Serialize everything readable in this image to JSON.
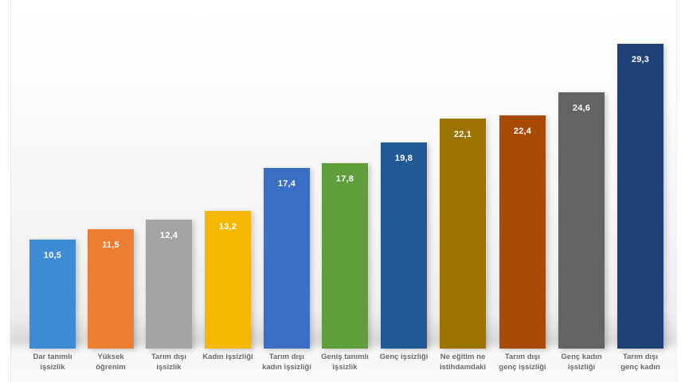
{
  "chart_data": {
    "type": "bar",
    "title": "",
    "xlabel": "",
    "ylabel": "",
    "ylim": [
      0,
      30
    ],
    "grid": false,
    "legend": null,
    "categories": [
      "Dar tanımlı işsizlik",
      "Yüksek öğrenim",
      "Tarım dışı işsizlik",
      "Kadın işsizliği",
      "Tarım dışı kadın işsizliği",
      "Geniş tanımlı işsizlik",
      "Genç işsizliği",
      "Ne eğitim ne istihdamdaki",
      "Tarım dışı genç işsizliği",
      "Genç kadın işsizliği",
      "Tarım dışı genç kadın"
    ],
    "values": [
      10.5,
      11.5,
      12.4,
      13.2,
      17.4,
      17.8,
      19.8,
      22.1,
      22.4,
      24.6,
      29.3
    ],
    "value_labels": [
      "10,5",
      "11,5",
      "12,4",
      "13,2",
      "17,4",
      "17,8",
      "19,8",
      "22,1",
      "22,4",
      "24,6",
      "29,3"
    ],
    "colors": [
      "#3c8dd6",
      "#ed7d31",
      "#a3a3a3",
      "#f5b800",
      "#3a6fc4",
      "#5f9e3a",
      "#1f5a96",
      "#9a7300",
      "#a84a08",
      "#636363",
      "#1f3f77"
    ]
  },
  "bars": [
    {
      "label": "Dar tanımlı\nişsizlik",
      "value_text": "10,5"
    },
    {
      "label": "Yüksek\nöğrenim",
      "value_text": "11,5"
    },
    {
      "label": "Tarım dışı\nişsizlik",
      "value_text": "12,4"
    },
    {
      "label": "Kadın işsizliği",
      "value_text": "13,2"
    },
    {
      "label": "Tarım dışı\nkadın işsizliği",
      "value_text": "17,4"
    },
    {
      "label": "Geniş tanımlı\nişsizlik",
      "value_text": "17,8"
    },
    {
      "label": "Genç işsizliği",
      "value_text": "19,8"
    },
    {
      "label": "Ne eğitim ne\nistihdamdaki",
      "value_text": "22,1"
    },
    {
      "label": "Tarım dışı\ngenç işsizliği",
      "value_text": "22,4"
    },
    {
      "label": "Genç kadın\nişsizliği",
      "value_text": "24,6"
    },
    {
      "label": "Tarım dışı\ngenç kadın",
      "value_text": "29,3"
    }
  ]
}
